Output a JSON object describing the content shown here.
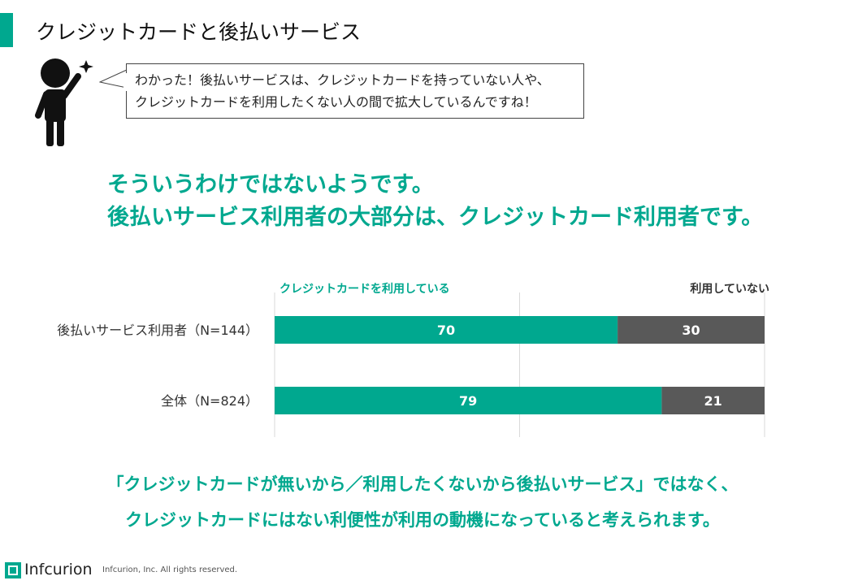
{
  "header": {
    "title": "クレジットカードと後払いサービス",
    "accent_color": "#00a88f"
  },
  "speech": {
    "line1": "わかった！後払いサービスは、クレジットカードを持っていない人や、",
    "line2": "クレジットカードを利用したくない人の間で拡大しているんですね！",
    "figure_icon": "person-raising-hand-icon",
    "sparkle_icon": "sparkle-icon"
  },
  "headline": {
    "line1": "そういうわけではないようです。",
    "line2": "後払いサービス利用者の大部分は、クレジットカード利用者です。"
  },
  "chart_data": {
    "type": "bar",
    "orientation": "horizontal",
    "stacked": true,
    "categories": [
      "後払いサービス利用者（N=144）",
      "全体（N=824）"
    ],
    "series": [
      {
        "name": "クレジットカードを利用している",
        "values": [
          70,
          79
        ],
        "color": "#00a88f"
      },
      {
        "name": "利用していない",
        "values": [
          30,
          21
        ],
        "color": "#595959"
      }
    ],
    "xlim": [
      0,
      100
    ],
    "grid": "vertical at 50"
  },
  "conclusion": {
    "line1": "「クレジットカードが無いから／利用したくないから後払いサービス」ではなく、",
    "line2": "クレジットカードにはない利便性が利用の動機になっていると考えられます。"
  },
  "footer": {
    "logo_text": "Infcurion",
    "logo_icon": "infcurion-logo-icon",
    "copyright": "Infcurion, Inc.  All rights reserved."
  }
}
